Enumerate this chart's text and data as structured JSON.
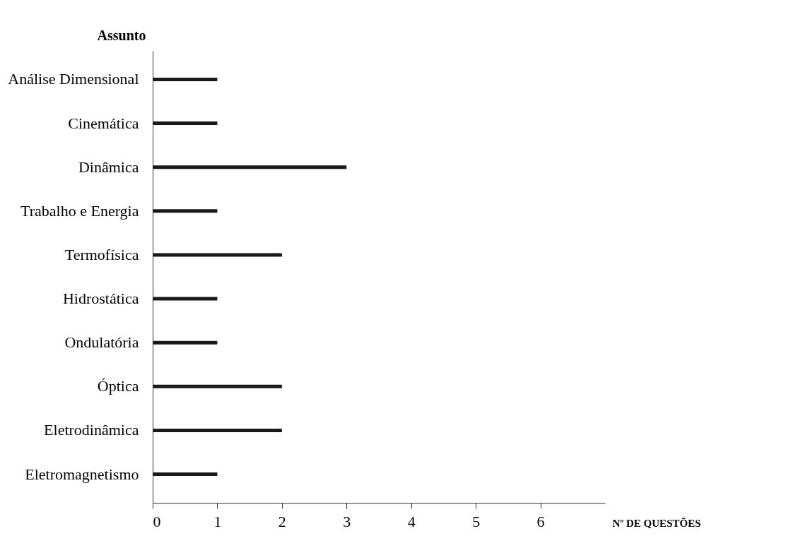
{
  "chart_data": {
    "type": "bar",
    "orientation": "horizontal",
    "ylabel": "Assunto",
    "xlabel": "Nº DE QUESTÕES",
    "categories": [
      "Análise Dimensional",
      "Cinemática",
      "Dinâmica",
      "Trabalho e Energia",
      "Termofísica",
      "Hidrostática",
      "Ondulatória",
      "Óptica",
      "Eletrodinâmica",
      "Eletromagnetismo"
    ],
    "values": [
      1,
      1,
      3,
      1,
      2,
      1,
      1,
      2,
      2,
      1
    ],
    "color": "#1a1a1a",
    "xlim": [
      0,
      7
    ],
    "xticks": [
      0,
      1,
      2,
      3,
      4,
      5,
      6
    ]
  }
}
